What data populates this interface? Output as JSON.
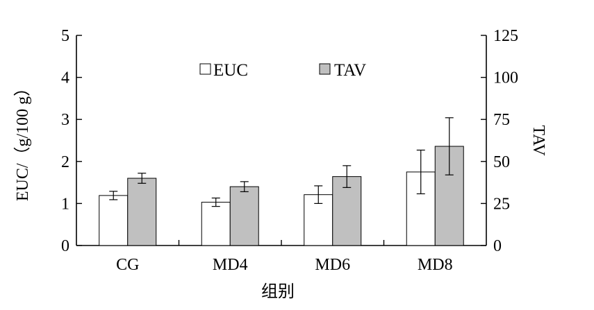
{
  "chart_data": {
    "type": "bar",
    "categories": [
      "CG",
      "MD4",
      "MD6",
      "MD8"
    ],
    "series": [
      {
        "name": "EUC",
        "axis": "left",
        "color": "#ffffff",
        "values": [
          1.19,
          1.03,
          1.21,
          1.75
        ],
        "errors": [
          0.1,
          0.1,
          0.21,
          0.52
        ]
      },
      {
        "name": "TAV",
        "axis": "right",
        "color": "#c0c0c0",
        "values": [
          40,
          35,
          41,
          59
        ],
        "errors": [
          3,
          3,
          6.5,
          17
        ]
      }
    ],
    "xlabel": "组别",
    "ylabel": "EUC/（g/100 g）",
    "y2label": "TAV",
    "ylim": [
      0,
      5
    ],
    "y2lim": [
      0,
      125
    ],
    "yticks": [
      "0",
      "1",
      "2",
      "3",
      "4",
      "5"
    ],
    "y2ticks": [
      "0",
      "25",
      "50",
      "75",
      "100",
      "125"
    ],
    "legend": {
      "placement": "top-center"
    },
    "grid": false
  }
}
